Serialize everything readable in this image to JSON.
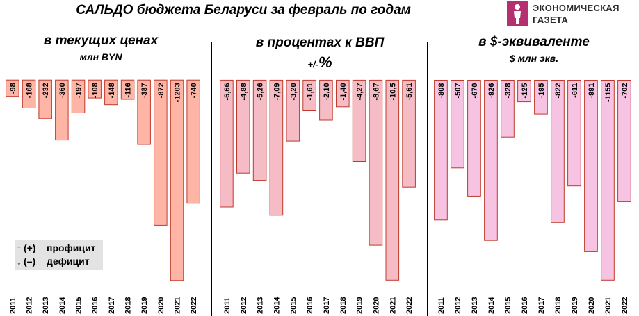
{
  "main_title": "САЛЬДО бюджета Беларуси за февраль по годам",
  "logo": {
    "line1": "ЭКОНОМИЧЕСКАЯ",
    "line2": "ГАЗЕТА"
  },
  "legend": {
    "surplus_arrow": "↑",
    "surplus_symbol": "(+)",
    "surplus_label": "профицит",
    "deficit_arrow": "↓",
    "deficit_symbol": "(–)",
    "deficit_label": "дефицит"
  },
  "chart_data": [
    {
      "type": "bar",
      "title": "в текущих ценах",
      "subtitle": "млн BYN",
      "color": "#ffb5a6",
      "stroke": "#c0392b",
      "categories": [
        "2011",
        "2012",
        "2013",
        "2014",
        "2015",
        "2016",
        "2017",
        "2018",
        "2019",
        "2020",
        "2021",
        "2022"
      ],
      "values": [
        -98,
        -168,
        -232,
        -360,
        -197,
        -108,
        -148,
        -116,
        -387,
        -872,
        -1203,
        -740
      ],
      "labels": [
        "-98",
        "-168",
        "-232",
        "-360",
        "-197",
        "-108",
        "-148",
        "-116",
        "-387",
        "-872",
        "-1203",
        "-740"
      ],
      "ylim": [
        -1233,
        30
      ]
    },
    {
      "type": "bar",
      "title": "в процентах к ВВП",
      "subtitle_prefix": "+/-",
      "subtitle": "%",
      "color": "#f6bcc6",
      "stroke": "#c0392b",
      "categories": [
        "2011",
        "2012",
        "2013",
        "2014",
        "2015",
        "2016",
        "2017",
        "2018",
        "2019",
        "2020",
        "2021",
        "2022"
      ],
      "values": [
        -6.66,
        -4.88,
        -5.26,
        -7.09,
        -3.2,
        -1.61,
        -2.1,
        -1.4,
        -4.27,
        -8.67,
        -10.5,
        -5.61
      ],
      "labels": [
        "-6,66",
        "-4,88",
        "-5,26",
        "-7,09",
        "-3,20",
        "-1,61",
        "-2,10",
        "-1,40",
        "-4,27",
        "-8,67",
        "-10,5",
        "-5,61"
      ],
      "ylim": [
        -10.78,
        0.27
      ]
    },
    {
      "type": "bar",
      "title": "в $-эквиваленте",
      "subtitle": "$ млн экв.",
      "color": "#f6c4e2",
      "stroke": "#c0392b",
      "categories": [
        "2011",
        "2012",
        "2013",
        "2014",
        "2015",
        "2016",
        "2017",
        "2018",
        "2019",
        "2020",
        "2021",
        "2022"
      ],
      "values": [
        -808,
        -507,
        -670,
        -926,
        -328,
        -125,
        -195,
        -822,
        -611,
        -991,
        -1155,
        -702
      ],
      "labels": [
        "-808",
        "-507",
        "-670",
        "-926",
        "-328",
        "-125",
        "-195",
        "-822",
        "-611",
        "-991",
        "-1155",
        "-702"
      ],
      "ylim": [
        -1186,
        30
      ]
    }
  ]
}
